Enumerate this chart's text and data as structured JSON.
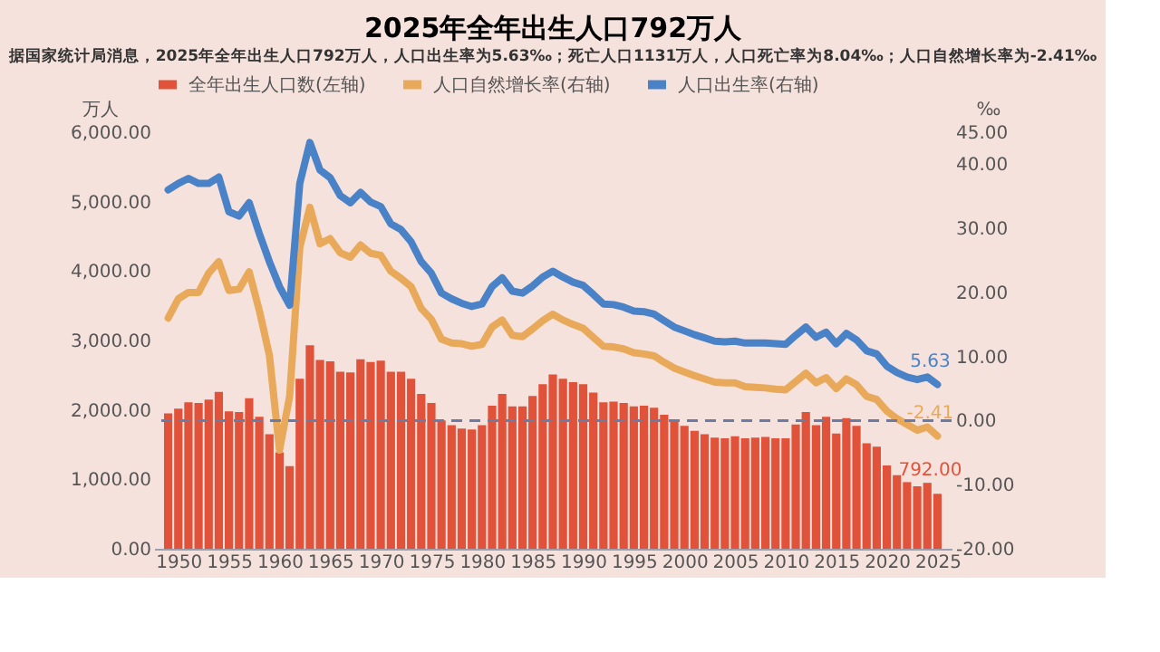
{
  "chart_data": {
    "type": "bar",
    "title": "2025年全年出生人口792万人",
    "subtitle": "据国家统计局消息，2025年全年出生人口792万人，人口出生率为5.63‰；死亡人口1131万人，人口死亡率为8.04‰；人口自然增长率为-2.41‰",
    "ylabel": "万人",
    "y2label": "‰",
    "x": [
      1949,
      1950,
      1951,
      1952,
      1953,
      1954,
      1955,
      1956,
      1957,
      1958,
      1959,
      1960,
      1961,
      1962,
      1963,
      1964,
      1965,
      1966,
      1967,
      1968,
      1969,
      1970,
      1971,
      1972,
      1973,
      1974,
      1975,
      1976,
      1977,
      1978,
      1979,
      1980,
      1981,
      1982,
      1983,
      1984,
      1985,
      1986,
      1987,
      1988,
      1989,
      1990,
      1991,
      1992,
      1993,
      1994,
      1995,
      1996,
      1997,
      1998,
      1999,
      2000,
      2001,
      2002,
      2003,
      2004,
      2005,
      2006,
      2007,
      2008,
      2009,
      2010,
      2011,
      2012,
      2013,
      2014,
      2015,
      2016,
      2017,
      2018,
      2019,
      2020,
      2021,
      2022,
      2023,
      2024,
      2025
    ],
    "xlim": [
      1948.5,
      2025.5
    ],
    "xticks": [
      1950,
      1955,
      1960,
      1965,
      1970,
      1975,
      1980,
      1985,
      1990,
      1995,
      2000,
      2005,
      2010,
      2015,
      2020,
      2025
    ],
    "ylim": [
      0,
      6000
    ],
    "yticks": [
      {
        "value": 0,
        "label": "0.00"
      },
      {
        "value": 1000,
        "label": "1,000.00"
      },
      {
        "value": 2000,
        "label": "2,000.00"
      },
      {
        "value": 3000,
        "label": "3,000.00"
      },
      {
        "value": 4000,
        "label": "4,000.00"
      },
      {
        "value": 5000,
        "label": "5,000.00"
      },
      {
        "value": 6000,
        "label": "6,000.00"
      }
    ],
    "y2lim": [
      -20,
      45
    ],
    "y2ticks": [
      {
        "value": -20,
        "label": "-20.00"
      },
      {
        "value": -10,
        "label": "-10.00"
      },
      {
        "value": 0,
        "label": "0.00"
      },
      {
        "value": 10,
        "label": "10.00"
      },
      {
        "value": 20,
        "label": "20.00"
      },
      {
        "value": 30,
        "label": "30.00"
      },
      {
        "value": 40,
        "label": "40.00"
      },
      {
        "value": 45,
        "label": "45.00"
      }
    ],
    "series": [
      {
        "name": "全年出生人口数(左轴)",
        "color": "#e0533a",
        "values": [
          1950,
          2020,
          2110,
          2100,
          2150,
          2260,
          1980,
          1970,
          2170,
          1900,
          1650,
          1390,
          1190,
          2450,
          2930,
          2720,
          2700,
          2550,
          2540,
          2730,
          2690,
          2710,
          2550,
          2550,
          2450,
          2230,
          2100,
          1850,
          1780,
          1730,
          1720,
          1780,
          2060,
          2230,
          2050,
          2050,
          2200,
          2370,
          2510,
          2450,
          2400,
          2370,
          2250,
          2110,
          2120,
          2100,
          2050,
          2060,
          2030,
          1930,
          1830,
          1770,
          1700,
          1650,
          1600,
          1590,
          1620,
          1590,
          1600,
          1610,
          1590,
          1590,
          1790,
          1970,
          1780,
          1900,
          1660,
          1880,
          1770,
          1520,
          1470,
          1200,
          1060,
          960,
          900,
          950,
          792
        ],
        "value_labels": [
          null,
          null,
          null,
          null,
          null,
          null,
          null,
          null,
          null,
          null,
          null,
          null,
          null,
          null,
          null,
          null,
          null,
          null,
          null,
          null,
          null,
          null,
          null,
          null,
          null,
          null,
          null,
          null,
          null,
          null,
          null,
          null,
          null,
          null,
          null,
          null,
          null,
          null,
          null,
          null,
          null,
          null,
          null,
          null,
          null,
          null,
          null,
          null,
          null,
          null,
          null,
          null,
          null,
          null,
          null,
          null,
          null,
          null,
          null,
          null,
          null,
          null,
          null,
          null,
          null,
          null,
          null,
          null,
          null,
          null,
          null,
          null,
          null,
          null,
          null,
          null,
          "792.00"
        ]
      },
      {
        "name": "人口自然增长率(右轴)",
        "type": "line",
        "axis": "y2",
        "color": "#e9a95a",
        "values": [
          16.0,
          19.0,
          20.0,
          20.0,
          23.0,
          24.8,
          20.3,
          20.5,
          23.2,
          17.2,
          10.2,
          -4.6,
          3.8,
          27.0,
          33.3,
          27.6,
          28.4,
          26.2,
          25.5,
          27.4,
          26.1,
          25.8,
          23.3,
          22.2,
          20.9,
          17.5,
          15.8,
          12.7,
          12.1,
          12.0,
          11.6,
          11.9,
          14.6,
          15.7,
          13.3,
          13.1,
          14.3,
          15.6,
          16.6,
          15.7,
          15.0,
          14.4,
          13.0,
          11.6,
          11.5,
          11.2,
          10.6,
          10.4,
          10.1,
          9.1,
          8.2,
          7.6,
          7.0,
          6.5,
          6.0,
          5.9,
          5.9,
          5.3,
          5.2,
          5.1,
          4.9,
          4.8,
          6.1,
          7.4,
          5.9,
          6.7,
          5.0,
          6.5,
          5.6,
          3.8,
          3.3,
          1.5,
          0.3,
          -0.6,
          -1.5,
          -1.0,
          -2.41
        ],
        "value_labels": [
          null,
          null,
          null,
          null,
          null,
          null,
          null,
          null,
          null,
          null,
          null,
          null,
          null,
          null,
          null,
          null,
          null,
          null,
          null,
          null,
          null,
          null,
          null,
          null,
          null,
          null,
          null,
          null,
          null,
          null,
          null,
          null,
          null,
          null,
          null,
          null,
          null,
          null,
          null,
          null,
          null,
          null,
          null,
          null,
          null,
          null,
          null,
          null,
          null,
          null,
          null,
          null,
          null,
          null,
          null,
          null,
          null,
          null,
          null,
          null,
          null,
          null,
          null,
          null,
          null,
          null,
          null,
          null,
          null,
          null,
          null,
          null,
          null,
          null,
          null,
          null,
          "-2.41"
        ]
      },
      {
        "name": "人口出生率(右轴)",
        "type": "line",
        "axis": "y2",
        "color": "#4a82c8",
        "values": [
          36.0,
          37.0,
          37.8,
          37.0,
          37.0,
          38.0,
          32.6,
          31.9,
          34.0,
          29.2,
          24.8,
          20.9,
          18.0,
          37.0,
          43.4,
          39.1,
          37.9,
          35.1,
          34.0,
          35.6,
          34.1,
          33.4,
          30.7,
          29.8,
          27.9,
          24.8,
          23.0,
          19.9,
          19.0,
          18.3,
          17.8,
          18.2,
          20.9,
          22.3,
          20.2,
          19.9,
          21.0,
          22.4,
          23.3,
          22.4,
          21.6,
          21.1,
          19.7,
          18.2,
          18.1,
          17.7,
          17.1,
          17.0,
          16.6,
          15.6,
          14.6,
          14.0,
          13.4,
          12.9,
          12.4,
          12.3,
          12.4,
          12.1,
          12.1,
          12.1,
          12.0,
          11.9,
          13.3,
          14.6,
          13.0,
          13.8,
          12.0,
          13.6,
          12.6,
          10.9,
          10.4,
          8.5,
          7.5,
          6.8,
          6.4,
          6.8,
          5.63
        ],
        "value_labels": [
          null,
          null,
          null,
          null,
          null,
          null,
          null,
          null,
          null,
          null,
          null,
          null,
          null,
          null,
          null,
          null,
          null,
          null,
          null,
          null,
          null,
          null,
          null,
          null,
          null,
          null,
          null,
          null,
          null,
          null,
          null,
          null,
          null,
          null,
          null,
          null,
          null,
          null,
          null,
          null,
          null,
          null,
          null,
          null,
          null,
          null,
          null,
          null,
          null,
          null,
          null,
          null,
          null,
          null,
          null,
          null,
          null,
          null,
          null,
          null,
          null,
          null,
          null,
          null,
          null,
          null,
          null,
          null,
          null,
          null,
          null,
          null,
          null,
          null,
          null,
          null,
          "5.63"
        ]
      }
    ],
    "ref_lines": [
      {
        "axis": "y2",
        "value": 0,
        "line_style": "dashed",
        "color": "#6b7ba3"
      }
    ],
    "legend": "top left",
    "grid": false
  }
}
